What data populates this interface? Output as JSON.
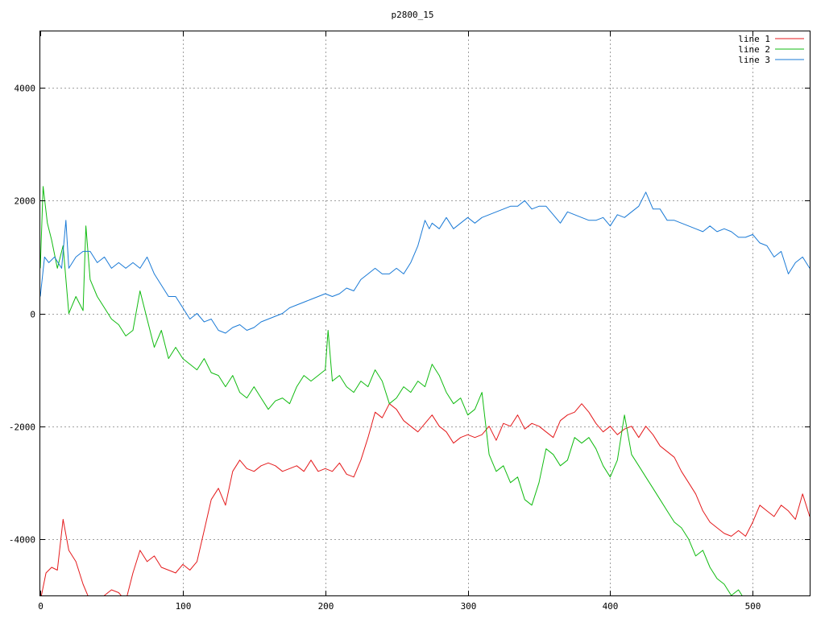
{
  "chart_data": {
    "type": "line",
    "title": "p2800_15",
    "xlabel": "",
    "ylabel": "",
    "xlim": [
      0,
      540
    ],
    "ylim": [
      -5000,
      5000
    ],
    "x_ticks": [
      0,
      100,
      200,
      300,
      400,
      500
    ],
    "y_ticks": [
      -4000,
      -2000,
      0,
      2000,
      4000
    ],
    "grid": true,
    "legend_position": "top-right",
    "series": [
      {
        "name": "line 1",
        "color": "#e41a1c",
        "x": [
          0,
          4,
          8,
          12,
          16,
          20,
          25,
          30,
          35,
          40,
          45,
          50,
          55,
          60,
          65,
          70,
          75,
          80,
          85,
          90,
          95,
          100,
          105,
          110,
          115,
          120,
          125,
          130,
          135,
          140,
          145,
          150,
          155,
          160,
          165,
          170,
          175,
          180,
          185,
          190,
          195,
          200,
          205,
          210,
          215,
          220,
          225,
          230,
          235,
          240,
          245,
          250,
          255,
          260,
          265,
          270,
          275,
          280,
          285,
          290,
          295,
          300,
          305,
          310,
          315,
          320,
          325,
          330,
          335,
          340,
          345,
          350,
          355,
          360,
          365,
          370,
          375,
          380,
          385,
          390,
          395,
          400,
          405,
          410,
          415,
          420,
          425,
          430,
          435,
          440,
          445,
          450,
          455,
          460,
          465,
          470,
          475,
          480,
          485,
          490,
          495,
          500,
          505,
          510,
          515,
          520,
          525,
          530,
          535,
          540
        ],
        "y": [
          -5100,
          -4600,
          -4500,
          -4550,
          -3650,
          -4200,
          -4400,
          -4800,
          -5100,
          -5200,
          -5000,
          -4900,
          -4950,
          -5100,
          -4600,
          -4200,
          -4400,
          -4300,
          -4500,
          -4550,
          -4600,
          -4450,
          -4550,
          -4400,
          -3850,
          -3300,
          -3100,
          -3400,
          -2800,
          -2600,
          -2750,
          -2800,
          -2700,
          -2650,
          -2700,
          -2800,
          -2750,
          -2700,
          -2800,
          -2600,
          -2800,
          -2750,
          -2800,
          -2650,
          -2850,
          -2900,
          -2600,
          -2200,
          -1750,
          -1850,
          -1600,
          -1700,
          -1900,
          -2000,
          -2100,
          -1950,
          -1800,
          -2000,
          -2100,
          -2300,
          -2200,
          -2150,
          -2200,
          -2150,
          -2000,
          -2250,
          -1950,
          -2000,
          -1800,
          -2050,
          -1950,
          -2000,
          -2100,
          -2200,
          -1900,
          -1800,
          -1750,
          -1600,
          -1750,
          -1950,
          -2100,
          -2000,
          -2150,
          -2050,
          -2000,
          -2200,
          -2000,
          -2150,
          -2350,
          -2450,
          -2550,
          -2800,
          -3000,
          -3200,
          -3500,
          -3700,
          -3800,
          -3900,
          -3950,
          -3850,
          -3950,
          -3700,
          -3400,
          -3500,
          -3600,
          -3400,
          -3500,
          -3650,
          -3200,
          -3600
        ]
      },
      {
        "name": "line 2",
        "color": "#11bb11",
        "x": [
          0,
          2,
          5,
          8,
          12,
          16,
          20,
          25,
          30,
          32,
          35,
          40,
          45,
          50,
          55,
          60,
          65,
          70,
          75,
          80,
          85,
          90,
          95,
          100,
          105,
          110,
          115,
          120,
          125,
          130,
          135,
          140,
          145,
          150,
          155,
          160,
          165,
          170,
          175,
          180,
          185,
          190,
          195,
          200,
          202,
          205,
          210,
          215,
          220,
          225,
          230,
          235,
          240,
          245,
          250,
          255,
          260,
          265,
          270,
          275,
          280,
          285,
          290,
          295,
          300,
          305,
          310,
          315,
          320,
          325,
          330,
          335,
          340,
          345,
          350,
          355,
          360,
          365,
          370,
          375,
          380,
          385,
          390,
          395,
          400,
          405,
          410,
          415,
          420,
          425,
          430,
          435,
          440,
          445,
          450,
          455,
          460,
          465,
          470,
          475,
          480,
          485,
          490,
          495
        ],
        "y": [
          800,
          2250,
          1600,
          1300,
          800,
          1200,
          0,
          300,
          50,
          1550,
          600,
          300,
          100,
          -100,
          -200,
          -400,
          -300,
          400,
          -100,
          -600,
          -300,
          -800,
          -600,
          -800,
          -900,
          -1000,
          -800,
          -1050,
          -1100,
          -1300,
          -1100,
          -1400,
          -1500,
          -1300,
          -1500,
          -1700,
          -1550,
          -1500,
          -1600,
          -1300,
          -1100,
          -1200,
          -1100,
          -1000,
          -300,
          -1200,
          -1100,
          -1300,
          -1400,
          -1200,
          -1300,
          -1000,
          -1200,
          -1600,
          -1500,
          -1300,
          -1400,
          -1200,
          -1300,
          -900,
          -1100,
          -1400,
          -1600,
          -1500,
          -1800,
          -1700,
          -1400,
          -2500,
          -2800,
          -2700,
          -3000,
          -2900,
          -3300,
          -3400,
          -3000,
          -2400,
          -2500,
          -2700,
          -2600,
          -2200,
          -2300,
          -2200,
          -2400,
          -2700,
          -2900,
          -2600,
          -1800,
          -2500,
          -2700,
          -2900,
          -3100,
          -3300,
          -3500,
          -3700,
          -3800,
          -4000,
          -4300,
          -4200,
          -4500,
          -4700,
          -4800,
          -5000,
          -4900,
          -5100
        ]
      },
      {
        "name": "line 3",
        "color": "#1a7ad6",
        "x": [
          0,
          3,
          6,
          10,
          15,
          18,
          20,
          25,
          30,
          35,
          40,
          45,
          50,
          55,
          60,
          65,
          70,
          75,
          80,
          85,
          90,
          95,
          100,
          105,
          110,
          115,
          120,
          125,
          130,
          135,
          140,
          145,
          150,
          155,
          160,
          165,
          170,
          175,
          180,
          185,
          190,
          195,
          200,
          205,
          210,
          215,
          220,
          225,
          230,
          235,
          240,
          245,
          250,
          255,
          260,
          265,
          270,
          273,
          275,
          280,
          285,
          290,
          295,
          300,
          305,
          310,
          315,
          320,
          325,
          330,
          335,
          340,
          345,
          350,
          355,
          360,
          365,
          370,
          375,
          380,
          385,
          390,
          395,
          400,
          405,
          410,
          415,
          420,
          425,
          430,
          435,
          440,
          445,
          450,
          455,
          460,
          465,
          470,
          475,
          480,
          485,
          490,
          495,
          500,
          505,
          510,
          515,
          520,
          525,
          530,
          535,
          540
        ],
        "y": [
          300,
          1000,
          900,
          1000,
          800,
          1650,
          800,
          1000,
          1100,
          1100,
          900,
          1000,
          800,
          900,
          800,
          900,
          800,
          1000,
          700,
          500,
          300,
          300,
          100,
          -100,
          0,
          -150,
          -100,
          -300,
          -350,
          -250,
          -200,
          -300,
          -250,
          -150,
          -100,
          -50,
          0,
          100,
          150,
          200,
          250,
          300,
          350,
          300,
          350,
          450,
          400,
          600,
          700,
          800,
          700,
          700,
          800,
          700,
          900,
          1200,
          1650,
          1500,
          1600,
          1500,
          1700,
          1500,
          1600,
          1700,
          1600,
          1700,
          1750,
          1800,
          1850,
          1900,
          1900,
          2000,
          1850,
          1900,
          1900,
          1750,
          1600,
          1800,
          1750,
          1700,
          1650,
          1650,
          1700,
          1550,
          1750,
          1700,
          1800,
          1900,
          2150,
          1850,
          1850,
          1650,
          1650,
          1600,
          1550,
          1500,
          1450,
          1550,
          1450,
          1500,
          1450,
          1350,
          1350,
          1400,
          1250,
          1200,
          1000,
          1100,
          700,
          900,
          1000,
          800
        ]
      }
    ]
  }
}
